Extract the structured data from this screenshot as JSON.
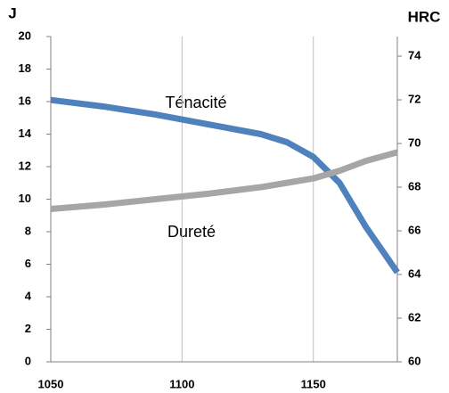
{
  "chart_data": {
    "type": "line",
    "y_label": "J",
    "y2_label": "HRC",
    "annotations": [
      "Ténacité",
      "Dureté"
    ],
    "x": [
      1050,
      1070,
      1090,
      1110,
      1130,
      1140,
      1150,
      1160,
      1170,
      1182
    ],
    "series": [
      {
        "name": "Ténacité",
        "color": "#4f81bd",
        "values": [
          16.1,
          15.7,
          15.2,
          14.6,
          14.0,
          13.5,
          12.6,
          11.0,
          8.3,
          5.5
        ]
      },
      {
        "name": "Dureté",
        "color": "#a6a6a6",
        "axis": "y2",
        "values": [
          67.0,
          67.2,
          67.45,
          67.7,
          68.0,
          68.2,
          68.4,
          68.75,
          69.2,
          69.6
        ]
      }
    ],
    "xlim": [
      1050,
      1182
    ],
    "xticks": [
      1050,
      1100,
      1150
    ],
    "ylim": [
      0,
      20
    ],
    "yticks": [
      0,
      2,
      4,
      6,
      8,
      10,
      12,
      14,
      16,
      18,
      20
    ],
    "y2lim": [
      60,
      74.9
    ],
    "y2ticks": [
      60,
      62,
      64,
      66,
      68,
      70,
      72,
      74
    ],
    "grid": true
  }
}
